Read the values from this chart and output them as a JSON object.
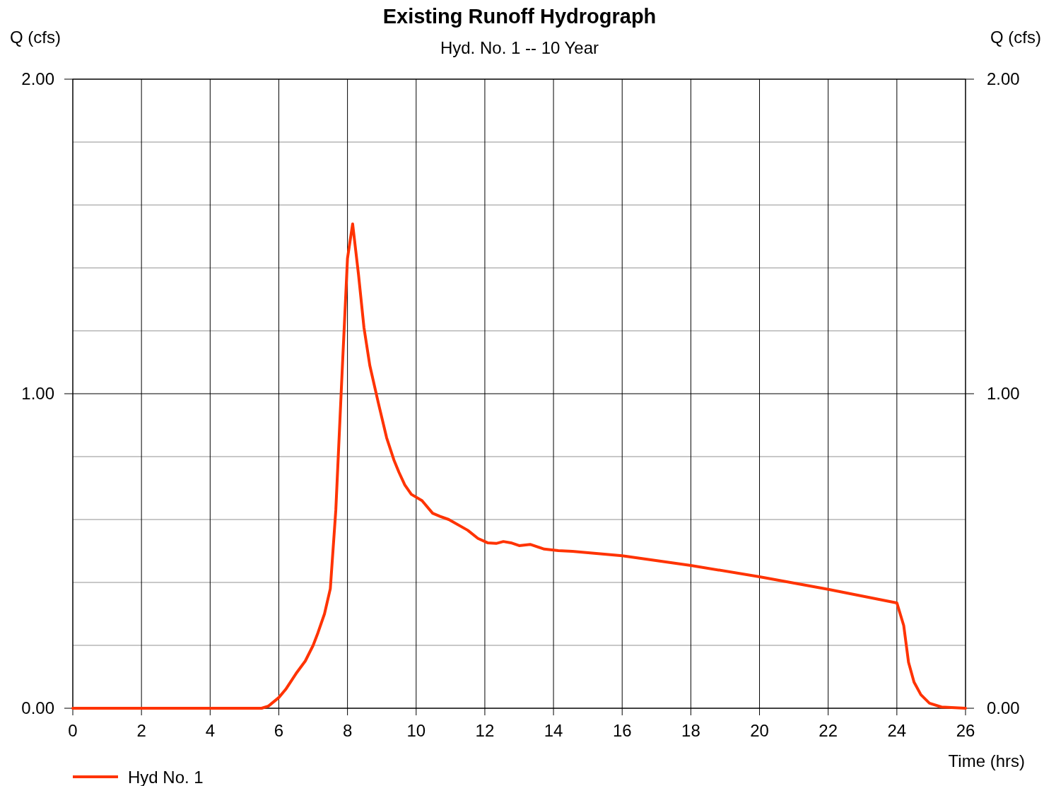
{
  "chart_data": {
    "type": "line",
    "title": "Existing Runoff Hydrograph",
    "subtitle": "Hyd. No. 1 -- 10 Year",
    "xlabel": "Time (hrs)",
    "ylabel": "Q (cfs)",
    "y2label": "Q (cfs)",
    "xlim": [
      0,
      26
    ],
    "xticks": [
      0,
      2,
      4,
      6,
      8,
      10,
      12,
      14,
      16,
      18,
      20,
      22,
      24,
      26
    ],
    "ylim": [
      0,
      2
    ],
    "yticks": [
      {
        "value": 0,
        "label": "0.00"
      },
      {
        "value": 0.2,
        "label": null
      },
      {
        "value": 0.4,
        "label": null
      },
      {
        "value": 0.6,
        "label": null
      },
      {
        "value": 0.8,
        "label": null
      },
      {
        "value": 1,
        "label": "1.00"
      },
      {
        "value": 1.2,
        "label": null
      },
      {
        "value": 1.4,
        "label": null
      },
      {
        "value": 1.6,
        "label": null
      },
      {
        "value": 1.8,
        "label": null
      },
      {
        "value": 2,
        "label": "2.00"
      }
    ],
    "y2lim": [
      0,
      2
    ],
    "y2ticks": [
      {
        "value": 0,
        "label": "0.00"
      },
      {
        "value": 1,
        "label": "1.00"
      },
      {
        "value": 2,
        "label": "2.00"
      }
    ],
    "grid": true,
    "legend": "bottom left",
    "marker": "none",
    "line_style": "solid",
    "series": [
      {
        "name": "Hyd No. 1",
        "color": "#ff3300",
        "x": [
          0,
          5.5,
          5.7,
          6.0,
          6.2,
          6.5,
          6.77,
          7.0,
          7.14,
          7.33,
          7.5,
          7.66,
          7.84,
          8.0,
          8.15,
          8.32,
          8.48,
          8.65,
          8.9,
          9.14,
          9.35,
          9.5,
          9.67,
          9.86,
          10.17,
          10.48,
          10.7,
          10.95,
          11.5,
          11.8,
          12.08,
          12.33,
          12.54,
          12.76,
          13.0,
          13.32,
          13.73,
          14.14,
          14.55,
          16,
          18,
          20,
          22,
          24,
          24.2,
          24.34,
          24.5,
          24.7,
          24.95,
          25.3,
          26
        ],
        "values": [
          0,
          0,
          0.007,
          0.034,
          0.06,
          0.11,
          0.15,
          0.2,
          0.24,
          0.3,
          0.38,
          0.63,
          1.06,
          1.43,
          1.54,
          1.38,
          1.21,
          1.09,
          0.97,
          0.86,
          0.79,
          0.75,
          0.71,
          0.68,
          0.66,
          0.62,
          0.61,
          0.6,
          0.566,
          0.54,
          0.526,
          0.524,
          0.53,
          0.526,
          0.517,
          0.521,
          0.506,
          0.501,
          0.499,
          0.485,
          0.454,
          0.418,
          0.378,
          0.335,
          0.263,
          0.146,
          0.083,
          0.043,
          0.016,
          0.004,
          0
        ]
      }
    ]
  }
}
